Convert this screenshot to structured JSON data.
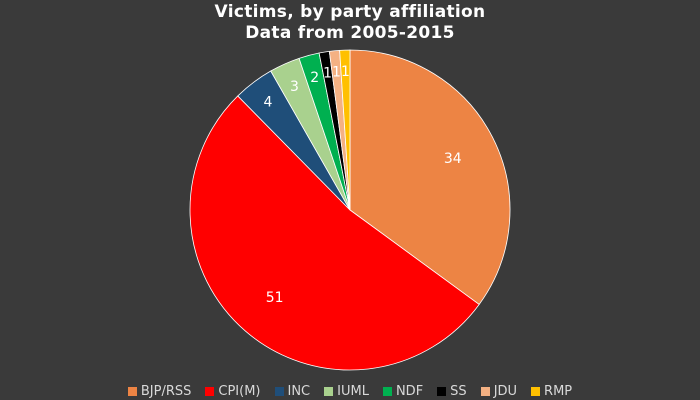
{
  "chart_data": {
    "type": "pie",
    "title": "Victims, by party affiliation",
    "subtitle": "Data from 2005-2015",
    "legend_position": "bottom",
    "series": [
      {
        "name": "BJP/RSS",
        "value": 34,
        "color": "#ed8444"
      },
      {
        "name": "CPI(M)",
        "value": 51,
        "color": "#ff0000"
      },
      {
        "name": "INC",
        "value": 4,
        "color": "#1f4e79"
      },
      {
        "name": "IUML",
        "value": 3,
        "color": "#a9d18e"
      },
      {
        "name": "NDF",
        "value": 2,
        "color": "#00b050"
      },
      {
        "name": "SS",
        "value": 1,
        "color": "#000000"
      },
      {
        "name": "JDU",
        "value": 1,
        "color": "#f4b183"
      },
      {
        "name": "RMP",
        "value": 1,
        "color": "#ffc000"
      }
    ]
  }
}
